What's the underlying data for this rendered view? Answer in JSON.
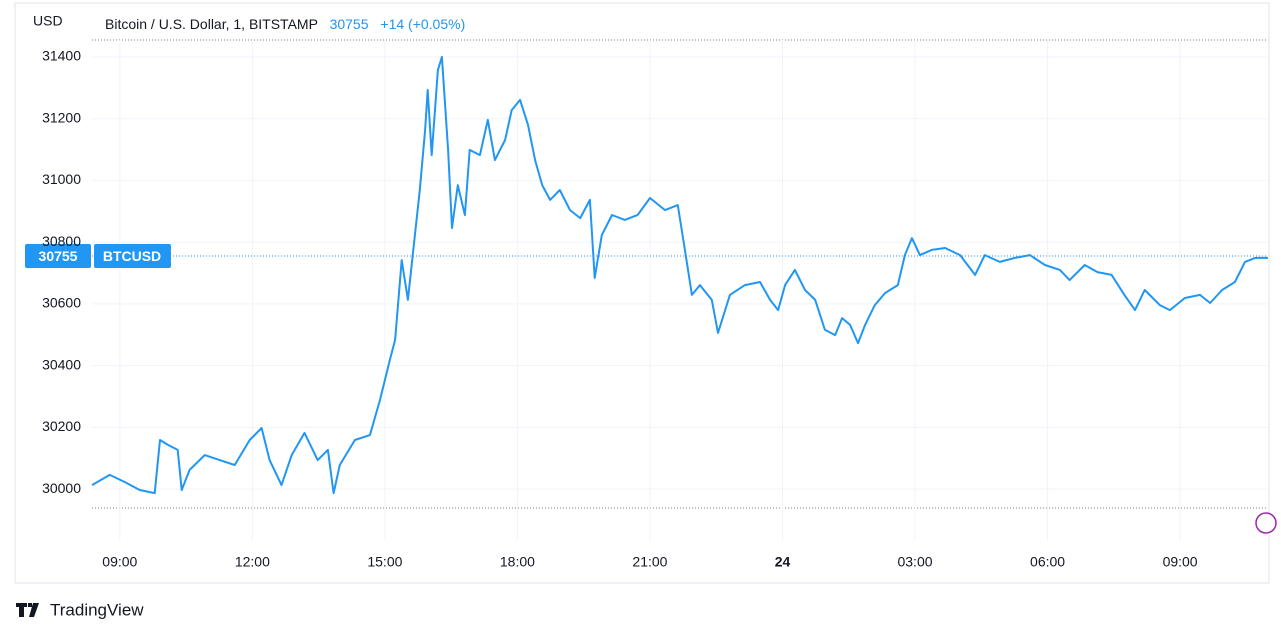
{
  "chart_data": {
    "type": "line",
    "title": "Bitcoin / U.S. Dollar, 1, BITSTAMP",
    "currency": "USD",
    "last_price": 30755,
    "change": "+14 (+0.05%)",
    "symbol": "BTCUSD",
    "brand": "TradingView",
    "xlim": [
      8.37,
      34.99
    ],
    "xticks": [
      {
        "value": 9,
        "label": "09:00"
      },
      {
        "value": 12,
        "label": "12:00"
      },
      {
        "value": 15,
        "label": "15:00"
      },
      {
        "value": 18,
        "label": "18:00"
      },
      {
        "value": 21,
        "label": "21:00"
      },
      {
        "value": 24,
        "label": "24"
      },
      {
        "value": 27,
        "label": "03:00"
      },
      {
        "value": 30,
        "label": "06:00"
      },
      {
        "value": 33,
        "label": "09:00"
      }
    ],
    "ylim": [
      29835,
      31455
    ],
    "yticks": [
      30000,
      30200,
      30400,
      30600,
      30800,
      31000,
      31200,
      31400
    ],
    "grid": true,
    "series": [
      {
        "name": "BTCUSD",
        "color": "#2196f3",
        "x": [
          8.37,
          8.77,
          9.11,
          9.45,
          9.79,
          9.91,
          10.09,
          10.31,
          10.4,
          10.58,
          10.92,
          11.26,
          11.6,
          11.94,
          12.21,
          12.39,
          12.66,
          12.89,
          13.18,
          13.48,
          13.71,
          13.84,
          13.98,
          14.32,
          14.66,
          14.89,
          15.11,
          15.23,
          15.38,
          15.52,
          15.68,
          15.79,
          15.91,
          15.97,
          16.06,
          16.2,
          16.29,
          16.43,
          16.52,
          16.65,
          16.81,
          16.92,
          17.15,
          17.33,
          17.49,
          17.72,
          17.87,
          18.06,
          18.24,
          18.4,
          18.56,
          18.74,
          18.96,
          19.19,
          19.42,
          19.64,
          19.75,
          19.91,
          20.14,
          20.43,
          20.72,
          21.0,
          21.34,
          21.63,
          21.79,
          21.95,
          22.13,
          22.4,
          22.54,
          22.81,
          23.15,
          23.49,
          23.72,
          23.9,
          24.06,
          24.28,
          24.51,
          24.74,
          24.96,
          25.19,
          25.35,
          25.53,
          25.71,
          25.87,
          26.09,
          26.32,
          26.61,
          26.77,
          26.93,
          27.11,
          27.38,
          27.68,
          28.02,
          28.36,
          28.58,
          28.92,
          29.26,
          29.6,
          29.94,
          30.28,
          30.5,
          30.84,
          31.13,
          31.45,
          31.74,
          31.98,
          32.2,
          32.54,
          32.77,
          33.11,
          33.45,
          33.68,
          33.95,
          34.24,
          34.47,
          34.7,
          34.99
        ],
        "values": [
          30013,
          30046,
          30023,
          29997,
          29987,
          30159,
          30143,
          30127,
          29997,
          30062,
          30110,
          30094,
          30078,
          30159,
          30198,
          30094,
          30013,
          30110,
          30182,
          30094,
          30127,
          29987,
          30078,
          30159,
          30175,
          30289,
          30418,
          30483,
          30742,
          30613,
          30823,
          30969,
          31163,
          31293,
          31082,
          31358,
          31400,
          31099,
          30846,
          30985,
          30888,
          31099,
          31082,
          31196,
          31066,
          31131,
          31228,
          31261,
          31180,
          31066,
          30985,
          30937,
          30969,
          30904,
          30878,
          30937,
          30684,
          30823,
          30888,
          30872,
          30888,
          30943,
          30904,
          30920,
          30775,
          30629,
          30661,
          30613,
          30506,
          30629,
          30661,
          30671,
          30613,
          30580,
          30661,
          30710,
          30645,
          30613,
          30516,
          30499,
          30554,
          30532,
          30473,
          30532,
          30596,
          30635,
          30661,
          30758,
          30813,
          30758,
          30775,
          30781,
          30758,
          30694,
          30758,
          30736,
          30749,
          30758,
          30726,
          30710,
          30677,
          30726,
          30703,
          30694,
          30629,
          30580,
          30645,
          30596,
          30580,
          30619,
          30629,
          30603,
          30645,
          30671,
          30736,
          30749,
          30749
        ]
      }
    ]
  }
}
